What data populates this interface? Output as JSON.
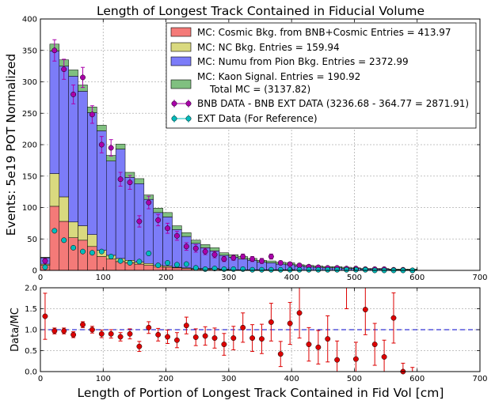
{
  "chart_data": [
    {
      "type": "bar",
      "subtype": "stacked-histogram-with-errorbar-points",
      "title": "Length of Longest Track Contained in Fiducial Volume",
      "ylabel": "Events: 5e19 POT Normalized",
      "xlabel": "",
      "xlim": [
        0,
        700
      ],
      "ylim": [
        0,
        400
      ],
      "xticks": [
        0,
        100,
        200,
        300,
        400,
        500,
        600,
        700
      ],
      "yticks": [
        0,
        50,
        100,
        150,
        200,
        250,
        300,
        350,
        400
      ],
      "grid": true,
      "legend_position": "upper-right",
      "bin_width": 15,
      "bin_edges_start": 0,
      "legend": [
        {
          "key": "cosmic",
          "kind": "patch",
          "label": "MC: Cosmic Bkg. from BNB+Cosmic Entries = 413.97"
        },
        {
          "key": "nc",
          "kind": "patch",
          "label": "MC: NC Bkg. Entries = 159.94"
        },
        {
          "key": "numu",
          "kind": "patch",
          "label": "MC: Numu from Pion Bkg. Entries = 2372.99"
        },
        {
          "key": "kaon",
          "kind": "patch",
          "label": "MC: Kaon Signal. Entries = 190.92",
          "label2": "Total MC = (3137.82)"
        },
        {
          "key": "bnb",
          "kind": "marker",
          "label": "BNB DATA - BNB EXT DATA (3236.68 - 364.77 = 2871.91)"
        },
        {
          "key": "ext",
          "kind": "marker",
          "label": "EXT Data (For Reference)"
        }
      ],
      "colors": {
        "cosmic": "#f47a78",
        "nc": "#d9d97f",
        "numu": "#7c7cf8",
        "kaon": "#80c080",
        "bnb": "#aa00aa",
        "ext": "#00bcbc",
        "grid": "#b0b0b0"
      },
      "stack_series": [
        {
          "name": "MC: Cosmic Bkg. from BNB+Cosmic",
          "key": "cosmic",
          "values": [
            8,
            102,
            78,
            52,
            48,
            38,
            22,
            18,
            14,
            12,
            10,
            8,
            6,
            5,
            4,
            3,
            2,
            2,
            2,
            1,
            1,
            1,
            1,
            1,
            1,
            1,
            1,
            0,
            0,
            0,
            0,
            0,
            0,
            0,
            0,
            0,
            0,
            0,
            0,
            0
          ]
        },
        {
          "name": "MC: NC Bkg.",
          "key": "nc",
          "values": [
            2,
            52,
            39,
            25,
            23,
            19,
            10,
            6,
            5,
            4,
            3,
            3,
            2,
            2,
            1,
            1,
            1,
            1,
            1,
            1,
            0,
            0,
            0,
            0,
            0,
            0,
            0,
            0,
            0,
            0,
            0,
            0,
            0,
            0,
            0,
            0,
            0,
            0,
            0,
            0
          ]
        },
        {
          "name": "MC: Numu from Pion Bkg.",
          "key": "numu",
          "values": [
            10,
            195,
            208,
            232,
            214,
            194,
            190,
            150,
            174,
            132,
            125,
            102,
            84,
            78,
            60,
            50,
            40,
            33,
            28,
            22,
            20,
            17,
            15,
            12,
            11,
            9,
            8,
            7,
            6,
            5,
            4,
            4,
            3,
            3,
            2,
            2,
            2,
            1,
            1,
            1
          ]
        },
        {
          "name": "MC: Kaon Signal.",
          "key": "kaon",
          "values": [
            1,
            11,
            10,
            10,
            10,
            9,
            9,
            9,
            8,
            8,
            8,
            7,
            7,
            7,
            6,
            6,
            5,
            5,
            5,
            4,
            4,
            4,
            3,
            3,
            3,
            3,
            3,
            2,
            2,
            2,
            2,
            2,
            2,
            1,
            1,
            1,
            1,
            1,
            1,
            1
          ]
        }
      ],
      "points": [
        {
          "name": "BNB DATA - BNB EXT DATA",
          "key": "bnb",
          "x": [
            7.5,
            22.5,
            37.5,
            52.5,
            67.5,
            82.5,
            97.5,
            112.5,
            127.5,
            142.5,
            157.5,
            172.5,
            187.5,
            202.5,
            217.5,
            232.5,
            247.5,
            262.5,
            277.5,
            292.5,
            307.5,
            322.5,
            337.5,
            352.5,
            367.5,
            382.5,
            397.5,
            412.5,
            427.5,
            442.5,
            457.5,
            472.5,
            487.5,
            502.5,
            517.5,
            532.5,
            547.5,
            562.5,
            577.5,
            592.5
          ],
          "y": [
            15,
            350,
            320,
            280,
            307,
            248,
            200,
            195,
            145,
            140,
            78,
            108,
            80,
            67,
            55,
            38,
            35,
            30,
            25,
            18,
            20,
            22,
            18,
            15,
            22,
            12,
            10,
            8,
            6,
            5,
            4,
            4,
            3,
            3,
            2,
            2,
            2,
            1,
            1,
            0
          ],
          "err": [
            4,
            17,
            16,
            15,
            16,
            14,
            13,
            13,
            11,
            11,
            9,
            10,
            9,
            8,
            7,
            6,
            6,
            5,
            5,
            4,
            4,
            4,
            4,
            4,
            4,
            3,
            3,
            3,
            2,
            2,
            2,
            2,
            2,
            2,
            2,
            1,
            1,
            1,
            1,
            1
          ]
        },
        {
          "name": "EXT Data (For Reference)",
          "key": "ext",
          "x": [
            7.5,
            22.5,
            37.5,
            52.5,
            67.5,
            82.5,
            97.5,
            112.5,
            127.5,
            142.5,
            157.5,
            172.5,
            187.5,
            202.5,
            217.5,
            232.5,
            247.5,
            262.5,
            277.5,
            292.5,
            307.5,
            322.5,
            337.5,
            352.5,
            367.5,
            382.5,
            397.5,
            412.5,
            427.5,
            442.5,
            457.5,
            472.5,
            487.5,
            502.5,
            517.5,
            532.5,
            547.5,
            562.5,
            577.5,
            592.5
          ],
          "y": [
            5,
            63,
            48,
            36,
            30,
            28,
            30,
            22,
            15,
            12,
            14,
            27,
            8,
            12,
            9,
            10,
            4,
            2,
            3,
            2,
            2,
            2,
            1,
            1,
            1,
            1,
            1,
            1,
            1,
            1,
            1,
            1,
            1,
            1,
            1,
            0,
            0,
            0,
            0,
            0
          ]
        }
      ]
    },
    {
      "type": "scatter",
      "subtype": "ratio-with-errorbars",
      "title": "",
      "xlabel": "Length of Portion of Longest Track Contained in Fid Vol [cm]",
      "ylabel": "Data/MC",
      "xlim": [
        0,
        700
      ],
      "ylim": [
        0.0,
        2.0
      ],
      "xticks": [
        0,
        100,
        200,
        300,
        400,
        500,
        600,
        700
      ],
      "yticks": [
        0.0,
        0.5,
        1.0,
        1.5,
        2.0
      ],
      "ytick_labels": [
        "0.0",
        "0.5",
        "1.0",
        "1.5",
        "2.0"
      ],
      "reference_line": 1.0,
      "grid": true,
      "colors": {
        "points": "#dd0000",
        "reference": "#0000cc"
      },
      "series": [
        {
          "name": "Data/MC",
          "x": [
            7.5,
            22.5,
            37.5,
            52.5,
            67.5,
            82.5,
            97.5,
            112.5,
            127.5,
            142.5,
            157.5,
            172.5,
            187.5,
            202.5,
            217.5,
            232.5,
            247.5,
            262.5,
            277.5,
            292.5,
            307.5,
            322.5,
            337.5,
            352.5,
            367.5,
            382.5,
            397.5,
            412.5,
            427.5,
            442.5,
            457.5,
            472.5,
            487.5,
            502.5,
            517.5,
            532.5,
            547.5,
            562.5,
            577.5,
            592.5
          ],
          "y": [
            1.32,
            0.97,
            0.97,
            0.88,
            1.12,
            1.0,
            0.9,
            0.9,
            0.83,
            0.9,
            0.6,
            1.05,
            0.88,
            0.83,
            0.75,
            1.1,
            0.82,
            0.85,
            0.8,
            0.65,
            0.8,
            1.05,
            0.8,
            0.78,
            1.18,
            0.42,
            1.15,
            1.4,
            0.65,
            0.58,
            0.78,
            0.28,
            2.1,
            0.3,
            1.48,
            0.65,
            0.35,
            1.28,
            0.0,
            -0.1
          ],
          "err": [
            0.55,
            0.07,
            0.07,
            0.07,
            0.07,
            0.08,
            0.09,
            0.1,
            0.1,
            0.12,
            0.12,
            0.14,
            0.15,
            0.16,
            0.18,
            0.2,
            0.2,
            0.22,
            0.24,
            0.26,
            0.28,
            0.35,
            0.32,
            0.35,
            0.45,
            0.3,
            0.5,
            0.6,
            0.4,
            0.4,
            0.55,
            0.45,
            0.6,
            0.4,
            0.6,
            0.5,
            0.4,
            0.6,
            0.2,
            0.2
          ]
        }
      ]
    }
  ]
}
